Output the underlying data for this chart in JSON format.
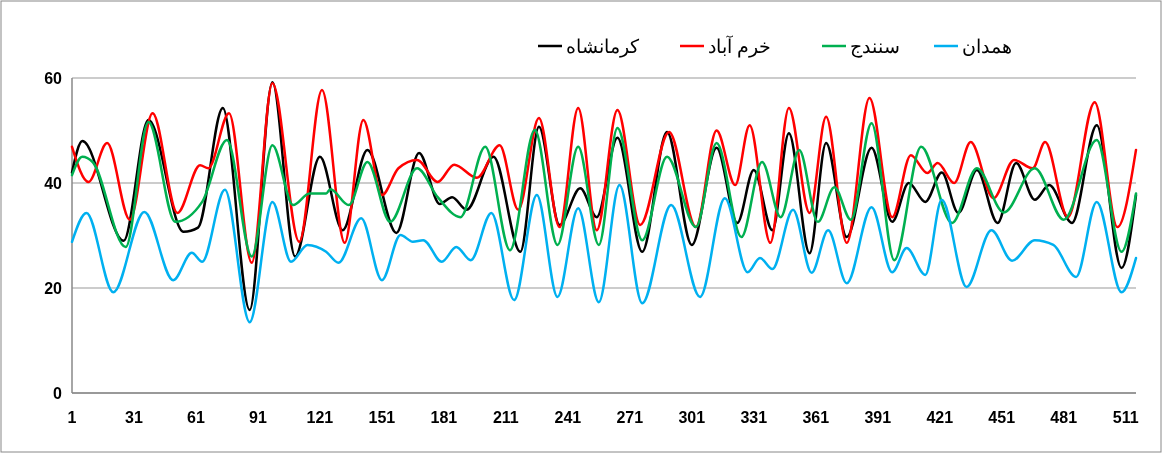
{
  "chart_data": {
    "type": "line",
    "xlim": [
      1,
      516
    ],
    "xticks": [
      1,
      31,
      61,
      91,
      121,
      151,
      181,
      211,
      241,
      271,
      301,
      331,
      361,
      391,
      421,
      451,
      481,
      511
    ],
    "ylim": [
      0,
      60
    ],
    "yticks": [
      0,
      20,
      40,
      60
    ],
    "grid": "y",
    "legend": "top right",
    "marker": "none",
    "line_style": "solid",
    "series": [
      {
        "name": "کرمانشاه",
        "color": "#000000",
        "x": [
          1,
          6,
          26,
          38,
          55,
          62,
          74,
          87,
          98,
          109,
          121,
          132,
          144,
          158,
          169,
          179,
          185,
          192,
          205,
          218,
          227,
          237,
          247,
          255,
          265,
          277,
          289,
          301,
          313,
          323,
          331,
          340,
          348,
          358,
          366,
          376,
          388,
          398,
          406,
          414,
          422,
          430,
          439,
          449,
          458,
          467,
          474,
          485,
          497,
          509,
          516
        ],
        "values": [
          42,
          48,
          29,
          52,
          30.7,
          31.5,
          54.3,
          15.8,
          59.2,
          26,
          45,
          31,
          46.3,
          30.5,
          45.7,
          36,
          37.3,
          34.9,
          45,
          26.9,
          50.7,
          32,
          39,
          33.5,
          48.6,
          26.9,
          49.7,
          28.2,
          46.7,
          32.4,
          42.5,
          31,
          49.5,
          26.6,
          47.6,
          29.7,
          46.7,
          32.6,
          40,
          36.4,
          42,
          34.3,
          42.5,
          32.4,
          43.8,
          36.8,
          39.6,
          32.4,
          51,
          23.8,
          37.7
        ]
      },
      {
        "name": "خرم آباد",
        "color": "#ff0000",
        "x": [
          1,
          9,
          18,
          29,
          40,
          52,
          63,
          67,
          77,
          88,
          98,
          111,
          122,
          133,
          142,
          151,
          159,
          168,
          178,
          186,
          197,
          208,
          217,
          227,
          237,
          246,
          255,
          265,
          276,
          290,
          303,
          313,
          322,
          329,
          339,
          348,
          358,
          366,
          376,
          387,
          398,
          407,
          415,
          420,
          428,
          436,
          447,
          457,
          466,
          472,
          483,
          496,
          507,
          516
        ],
        "values": [
          46.9,
          40.2,
          47.6,
          33,
          53.3,
          34.3,
          43.4,
          42.8,
          53.3,
          24.8,
          59,
          28.8,
          57.7,
          28.6,
          52,
          37.7,
          42.8,
          44.4,
          40.2,
          43.5,
          41,
          47.2,
          34.9,
          52.4,
          31.6,
          54.3,
          31,
          53.9,
          32,
          49.7,
          31.6,
          50,
          39.6,
          51,
          28.6,
          54.3,
          34.3,
          52.6,
          28.6,
          56.2,
          33.5,
          45.3,
          41.9,
          43.8,
          40,
          47.8,
          37.1,
          44.4,
          42.8,
          47.8,
          33.5,
          55.4,
          31.6,
          46.3
        ]
      },
      {
        "name": "سنندج",
        "color": "#00b050",
        "x": [
          1,
          6,
          11,
          27,
          38,
          51,
          64,
          76,
          88,
          98,
          108,
          116,
          124,
          126,
          135,
          144,
          155,
          168,
          178,
          189,
          201,
          213,
          225,
          236,
          246,
          256,
          265,
          277,
          289,
          303,
          313,
          325,
          335,
          344,
          353,
          362,
          370,
          378,
          388,
          399,
          412,
          427,
          439,
          452,
          467,
          481,
          497,
          509,
          516
        ],
        "values": [
          41.5,
          45,
          44,
          27.8,
          51.6,
          32.6,
          36.4,
          48.2,
          26,
          47.2,
          35.8,
          38,
          38,
          38.8,
          35.8,
          44,
          32.6,
          42.8,
          37.3,
          33.5,
          46.9,
          27.2,
          50.1,
          28.2,
          46.9,
          28.2,
          50.5,
          29.1,
          45,
          31.6,
          47.6,
          29.7,
          44,
          33.5,
          46.3,
          32.6,
          39.2,
          33,
          51.4,
          25.3,
          46.9,
          32.4,
          42.8,
          34.4,
          42.8,
          33,
          48.2,
          26.9,
          38
        ]
      },
      {
        "name": "همدان",
        "color": "#00b0f0",
        "x": [
          1,
          8,
          21,
          36,
          50,
          59,
          64,
          75,
          87,
          98,
          107,
          115,
          124,
          130,
          141,
          151,
          160,
          166,
          171,
          180,
          187,
          194,
          204,
          215,
          226,
          236,
          246,
          256,
          266,
          277,
          291,
          305,
          317,
          328,
          334,
          340,
          350,
          359,
          367,
          376,
          388,
          398,
          405,
          414,
          422,
          434,
          446,
          456,
          467,
          476,
          487,
          497,
          509,
          516
        ],
        "values": [
          28.8,
          34.3,
          19.2,
          34.5,
          21.5,
          26.7,
          25,
          38.7,
          13.5,
          36.4,
          25,
          28.2,
          26.9,
          24.8,
          33.3,
          21.5,
          30.1,
          28.8,
          29.1,
          25,
          27.8,
          25.3,
          34.3,
          17.7,
          37.7,
          18.3,
          35.2,
          17.3,
          39.6,
          17.1,
          35.8,
          18.3,
          37.1,
          23,
          25.7,
          23.6,
          34.9,
          22.9,
          31,
          20.9,
          35.4,
          23,
          27.6,
          22.5,
          36.8,
          20.2,
          31,
          25.2,
          29.1,
          28.2,
          22.1,
          36.4,
          19.2,
          25.7
        ]
      }
    ]
  }
}
